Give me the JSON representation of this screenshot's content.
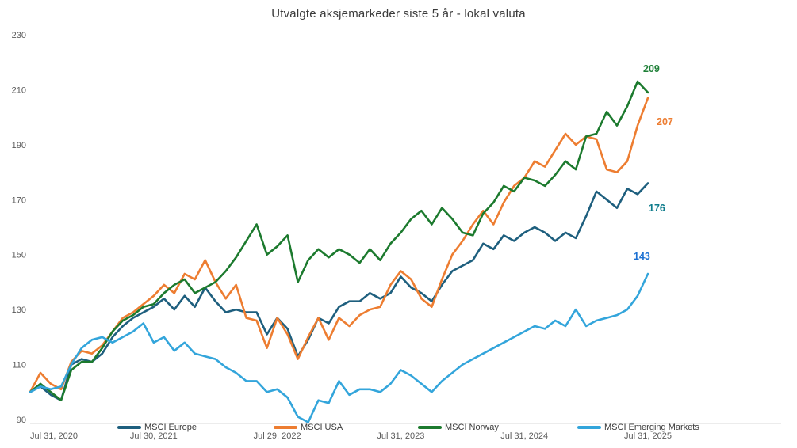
{
  "chart_data": {
    "type": "line",
    "title": "Utvalgte aksjemarkeder siste 5 år - lokal valuta",
    "x_labels": [
      "Jul 31, 2020",
      "Jul 30, 2021",
      "Jul 29, 2022",
      "Jul 31, 2023",
      "Jul 31, 2024",
      "Jul 31, 2025"
    ],
    "yticks": [
      90,
      110,
      130,
      150,
      170,
      190,
      210,
      230
    ],
    "ylim": [
      90,
      230
    ],
    "grid": false,
    "legend_position": "bottom",
    "x_unit": "months, Jul 2020 - Jul 2025, indexed 100 at start",
    "series": [
      {
        "name": "MSCI Europe",
        "color": "#1E5F7E",
        "label_color": "#0E7C8C",
        "end_label": "176",
        "values": [
          100,
          102,
          99,
          97,
          110,
          112,
          111,
          114,
          120,
          124,
          127,
          129,
          131,
          134,
          130,
          135,
          131,
          138,
          133,
          129,
          130,
          129,
          129,
          121,
          127,
          123,
          113,
          119,
          127,
          125,
          131,
          133,
          133,
          136,
          134,
          136,
          142,
          138,
          136,
          133,
          139,
          144,
          146,
          148,
          154,
          152,
          157,
          155,
          158,
          160,
          158,
          155,
          158,
          156,
          164,
          173,
          170,
          167,
          174,
          172,
          176
        ]
      },
      {
        "name": "MSCI USA",
        "color": "#ED7D31",
        "label_color": "#ED7D31",
        "end_label": "207",
        "values": [
          100,
          107,
          103,
          101,
          111,
          115,
          114,
          117,
          122,
          127,
          129,
          132,
          135,
          139,
          136,
          143,
          141,
          148,
          140,
          134,
          139,
          127,
          126,
          116,
          127,
          121,
          112,
          120,
          127,
          119,
          127,
          124,
          128,
          130,
          131,
          139,
          144,
          141,
          134,
          131,
          141,
          150,
          155,
          161,
          166,
          161,
          169,
          175,
          178,
          184,
          182,
          188,
          194,
          190,
          193,
          192,
          181,
          180,
          184,
          197,
          207
        ]
      },
      {
        "name": "MSCI Norway",
        "color": "#1C7A2E",
        "label_color": "#1F8038",
        "end_label": "209",
        "values": [
          100,
          103,
          100,
          97,
          108,
          111,
          111,
          116,
          122,
          126,
          128,
          131,
          132,
          136,
          139,
          141,
          136,
          138,
          140,
          144,
          149,
          155,
          161,
          150,
          153,
          157,
          140,
          148,
          152,
          149,
          152,
          150,
          147,
          152,
          148,
          154,
          158,
          163,
          166,
          161,
          167,
          163,
          158,
          157,
          165,
          169,
          175,
          173,
          178,
          177,
          175,
          179,
          184,
          181,
          193,
          194,
          202,
          197,
          204,
          213,
          209
        ]
      },
      {
        "name": "MSCI Emerging Markets",
        "color": "#33A5DB",
        "label_color": "#1C70D2",
        "end_label": "143",
        "values": [
          100,
          102,
          101,
          102,
          110,
          116,
          119,
          120,
          118,
          120,
          122,
          125,
          118,
          120,
          115,
          118,
          114,
          113,
          112,
          109,
          107,
          104,
          104,
          100,
          101,
          98,
          91,
          89,
          97,
          96,
          104,
          99,
          101,
          101,
          100,
          103,
          108,
          106,
          103,
          100,
          104,
          107,
          110,
          112,
          114,
          116,
          118,
          120,
          122,
          124,
          123,
          126,
          124,
          130,
          124,
          126,
          127,
          128,
          130,
          135,
          143
        ]
      }
    ]
  }
}
